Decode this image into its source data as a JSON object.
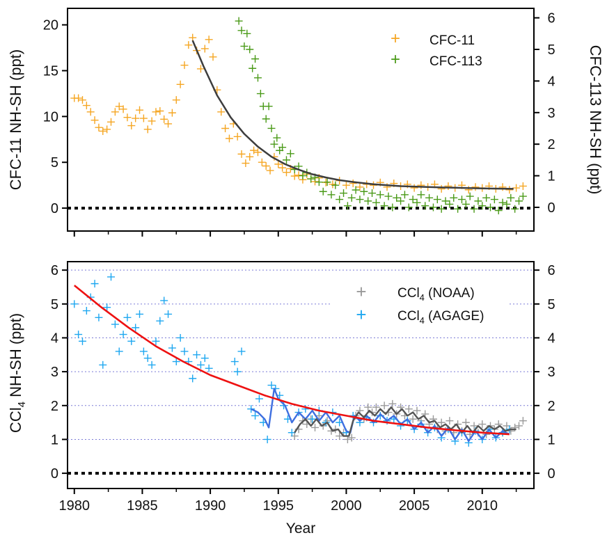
{
  "chart_data": [
    {
      "type": "scatter",
      "panel": "top",
      "x_range": [
        1979.5,
        2013.8
      ],
      "xticks": [
        1980,
        1985,
        1990,
        1995,
        2000,
        2005,
        2010
      ],
      "left_axis": {
        "label": "CFC-11  NH-SH (ppt)",
        "ylim": [
          -2.5,
          21.8
        ],
        "ticks": [
          "0",
          "5",
          "10",
          "15",
          "20"
        ]
      },
      "right_axis": {
        "label": "CFC-113 NH-SH (ppt)",
        "ylim": [
          -0.75,
          6.3
        ],
        "ticks": [
          "0",
          "1",
          "2",
          "3",
          "4",
          "5",
          "6"
        ]
      },
      "zero_line": true,
      "series": [
        {
          "name": "CFC-11",
          "color": "#f5a623",
          "marker": "+",
          "axis": "left",
          "x": [
            1980.0,
            1980.3,
            1980.6,
            1980.9,
            1981.2,
            1981.5,
            1981.8,
            1982.1,
            1982.4,
            1982.7,
            1983.0,
            1983.3,
            1983.6,
            1983.9,
            1984.2,
            1984.5,
            1984.8,
            1985.1,
            1985.4,
            1985.7,
            1986.0,
            1986.3,
            1986.6,
            1986.9,
            1987.2,
            1987.5,
            1987.8,
            1988.1,
            1988.4,
            1988.7,
            1989.0,
            1989.3,
            1989.6,
            1989.9,
            1990.2,
            1990.5,
            1990.8,
            1991.1,
            1991.4,
            1991.7,
            1992.0,
            1992.3,
            1992.6,
            1992.9,
            1993.2,
            1993.5,
            1993.8,
            1994.1,
            1994.4,
            1994.7,
            1995.0,
            1995.3,
            1995.6,
            1995.9,
            1996.2,
            1996.5,
            1996.8,
            1997.1,
            1997.4,
            1997.7,
            1998.0,
            1998.5,
            1999.0,
            1999.5,
            2000.0,
            2000.5,
            2001.0,
            2001.5,
            2002.0,
            2002.5,
            2003.0,
            2003.5,
            2004.0,
            2004.5,
            2005.0,
            2005.5,
            2006.0,
            2006.5,
            2007.0,
            2007.5,
            2008.0,
            2008.5,
            2009.0,
            2009.5,
            2010.0,
            2010.5,
            2011.0,
            2011.5,
            2012.0,
            2012.5,
            2013.0
          ],
          "y": [
            12.0,
            12.0,
            11.8,
            11.2,
            10.5,
            9.6,
            8.8,
            8.4,
            8.6,
            9.4,
            10.5,
            11.1,
            10.8,
            9.9,
            9.0,
            9.8,
            10.7,
            9.8,
            8.6,
            9.5,
            10.5,
            10.6,
            9.7,
            9.2,
            10.4,
            11.8,
            13.5,
            15.6,
            17.8,
            18.6,
            17.2,
            15.2,
            17.4,
            18.4,
            16.5,
            12.9,
            10.5,
            8.7,
            7.6,
            9.2,
            7.8,
            5.9,
            4.9,
            5.6,
            6.3,
            6.1,
            5.0,
            4.6,
            4.1,
            5.6,
            4.8,
            4.4,
            3.9,
            4.3,
            3.5,
            3.6,
            3.1,
            3.7,
            3.2,
            2.9,
            3.3,
            2.8,
            2.6,
            3.0,
            2.5,
            2.7,
            2.3,
            2.6,
            2.5,
            2.8,
            2.3,
            2.7,
            2.4,
            2.6,
            2.2,
            2.5,
            2.3,
            2.6,
            2.1,
            2.4,
            2.2,
            2.5,
            2.0,
            2.3,
            2.2,
            2.4,
            2.1,
            2.3,
            2.0,
            2.2,
            2.4
          ]
        },
        {
          "name": "CFC-113",
          "color": "#4a9a18",
          "marker": "+",
          "axis": "right",
          "x": [
            1992.1,
            1992.3,
            1992.5,
            1992.7,
            1992.9,
            1993.1,
            1993.3,
            1993.5,
            1993.7,
            1993.9,
            1994.1,
            1994.3,
            1994.5,
            1994.7,
            1994.9,
            1995.1,
            1995.3,
            1995.6,
            1995.9,
            1996.2,
            1996.5,
            1996.8,
            1997.1,
            1997.4,
            1997.7,
            1998.0,
            1998.3,
            1998.6,
            1998.9,
            1999.2,
            1999.5,
            1999.8,
            2000.1,
            2000.4,
            2000.7,
            2001.0,
            2001.3,
            2001.6,
            2001.9,
            2002.2,
            2002.5,
            2002.8,
            2003.1,
            2003.4,
            2003.7,
            2004.0,
            2004.3,
            2004.6,
            2004.9,
            2005.2,
            2005.5,
            2005.8,
            2006.1,
            2006.4,
            2006.7,
            2007.0,
            2007.3,
            2007.6,
            2007.9,
            2008.2,
            2008.5,
            2008.8,
            2009.1,
            2009.4,
            2009.7,
            2010.0,
            2010.3,
            2010.6,
            2010.9,
            2011.2,
            2011.5,
            2011.8,
            2012.1,
            2012.4,
            2012.7,
            2013.0
          ],
          "y": [
            5.9,
            5.6,
            5.1,
            5.5,
            5.0,
            4.4,
            4.7,
            4.1,
            3.6,
            3.2,
            2.8,
            3.2,
            2.5,
            2.0,
            2.2,
            1.8,
            1.9,
            1.5,
            1.7,
            1.2,
            1.3,
            1.0,
            1.1,
            0.9,
            0.95,
            0.8,
            0.5,
            0.8,
            0.4,
            0.7,
            0.25,
            0.45,
            0.05,
            0.3,
            0.55,
            0.25,
            0.5,
            0.2,
            0.45,
            0.15,
            0.4,
            0.05,
            0.35,
            0.0,
            0.3,
            0.2,
            0.4,
            0.0,
            0.25,
            0.15,
            0.4,
            0.05,
            0.3,
            0.0,
            0.25,
            -0.05,
            0.2,
            0.1,
            0.3,
            -0.05,
            0.25,
            0.1,
            0.35,
            -0.05,
            0.2,
            0.05,
            0.3,
            0.0,
            0.25,
            -0.1,
            0.15,
            0.1,
            0.3,
            -0.05,
            0.2,
            0.35
          ]
        },
        {
          "name": "",
          "type": "line",
          "color": "#3d3d3d",
          "axis": "left",
          "x": [
            1988.7,
            1989.5,
            1990.5,
            1991.5,
            1992.5,
            1993.5,
            1994.5,
            1995.5,
            1996.5,
            1997.5,
            1998.5,
            1999.5,
            2000.5,
            2002,
            2004,
            2006,
            2008,
            2010,
            2012.3
          ],
          "y": [
            18.3,
            15.5,
            12.3,
            9.9,
            8.1,
            6.7,
            5.6,
            4.8,
            4.2,
            3.7,
            3.35,
            3.05,
            2.85,
            2.6,
            2.4,
            2.3,
            2.22,
            2.15,
            2.1
          ]
        }
      ]
    },
    {
      "type": "scatter",
      "panel": "bottom",
      "xlabel": "Year",
      "x_range": [
        1979.5,
        2013.8
      ],
      "xticks": [
        "1980",
        "1985",
        "1990",
        "1995",
        "2000",
        "2005",
        "2010"
      ],
      "left_axis": {
        "label": "CCl4  NH-SH (ppt)",
        "ylim": [
          -0.45,
          6.25
        ],
        "ticks": [
          "0",
          "1",
          "2",
          "3",
          "4",
          "5",
          "6"
        ]
      },
      "right_axis": {
        "ticks": [
          "0",
          "1",
          "2",
          "3",
          "4",
          "5",
          "6"
        ]
      },
      "grid": "dotted horizontal at 1–6",
      "zero_line": true,
      "series": [
        {
          "name": "CCl4 (NOAA)",
          "label_main": "CCl",
          "label_sub": "4",
          "label_tail": " (NOAA)",
          "color": "#999999",
          "marker": "+",
          "x": [
            1996.2,
            1996.5,
            1996.8,
            1997.1,
            1997.4,
            1997.7,
            1998.0,
            1998.3,
            1998.6,
            1998.9,
            1999.2,
            1999.5,
            1999.8,
            2000.1,
            2000.4,
            2000.7,
            2001.0,
            2001.3,
            2001.6,
            2001.9,
            2002.2,
            2002.5,
            2002.8,
            2003.1,
            2003.4,
            2003.7,
            2004.0,
            2004.3,
            2004.6,
            2004.9,
            2005.2,
            2005.5,
            2005.8,
            2006.1,
            2006.4,
            2006.7,
            2007.0,
            2007.3,
            2007.6,
            2007.9,
            2008.2,
            2008.5,
            2008.8,
            2009.1,
            2009.4,
            2009.7,
            2010.0,
            2010.3,
            2010.6,
            2010.9,
            2011.2,
            2011.5,
            2011.8,
            2012.1,
            2012.4,
            2012.7,
            2013.0
          ],
          "y": [
            1.1,
            1.3,
            1.55,
            1.45,
            1.6,
            1.35,
            1.7,
            1.4,
            1.55,
            1.25,
            1.3,
            1.1,
            1.2,
            1.0,
            1.05,
            1.7,
            1.85,
            1.6,
            1.95,
            1.8,
            1.95,
            1.7,
            2.0,
            1.8,
            2.05,
            1.75,
            1.95,
            1.7,
            1.9,
            1.6,
            1.85,
            1.55,
            1.75,
            1.45,
            1.6,
            1.3,
            1.5,
            1.25,
            1.55,
            1.2,
            1.45,
            1.25,
            1.5,
            1.15,
            1.4,
            1.2,
            1.45,
            1.15,
            1.4,
            1.3,
            1.45,
            1.2,
            1.4,
            1.25,
            1.35,
            1.4,
            1.55
          ]
        },
        {
          "name": "CCl4 (AGAGE)",
          "label_main": "CCl",
          "label_sub": "4",
          "label_tail": " (AGAGE)",
          "color": "#1ea7f0",
          "marker": "+",
          "x": [
            1980.0,
            1980.3,
            1980.6,
            1980.9,
            1981.2,
            1981.5,
            1981.8,
            1982.1,
            1982.4,
            1982.7,
            1983.0,
            1983.3,
            1983.6,
            1983.9,
            1984.2,
            1984.5,
            1984.8,
            1985.1,
            1985.4,
            1985.7,
            1986.0,
            1986.3,
            1986.6,
            1986.9,
            1987.2,
            1987.5,
            1987.8,
            1988.1,
            1988.4,
            1988.7,
            1989.0,
            1989.3,
            1989.6,
            1989.9,
            1991.8,
            1992.0,
            1992.3,
            1993.0,
            1993.3,
            1993.6,
            1993.9,
            1994.2,
            1994.5,
            1994.8,
            1995.1,
            1995.4,
            1995.7,
            1996.0,
            1996.5,
            1997.0,
            1997.5,
            1998.0,
            1998.5,
            1999.0,
            1999.5,
            2000.0,
            2000.5,
            2001.0,
            2001.5,
            2002.0,
            2002.5,
            2003.0,
            2003.5,
            2004.0,
            2004.5,
            2005.0,
            2005.5,
            2006.0,
            2006.5,
            2007.0,
            2007.5,
            2008.0,
            2008.5,
            2009.0,
            2009.5,
            2010.0,
            2010.5,
            2011.0,
            2011.5,
            2012.0
          ],
          "y": [
            5.0,
            4.1,
            3.9,
            4.8,
            5.2,
            5.6,
            4.6,
            3.2,
            4.9,
            5.8,
            4.4,
            3.6,
            4.1,
            4.6,
            3.9,
            4.3,
            4.7,
            3.6,
            3.4,
            3.2,
            3.9,
            4.5,
            5.1,
            4.7,
            3.7,
            3.3,
            4.0,
            3.6,
            3.3,
            2.8,
            3.5,
            3.2,
            3.4,
            3.1,
            3.3,
            3.0,
            3.6,
            1.9,
            1.7,
            2.2,
            1.5,
            1.0,
            2.6,
            2.5,
            2.3,
            2.0,
            1.6,
            1.2,
            1.8,
            1.9,
            1.6,
            1.85,
            1.5,
            1.8,
            1.5,
            1.2,
            1.7,
            1.5,
            1.65,
            1.5,
            1.7,
            1.55,
            1.6,
            1.4,
            1.55,
            1.3,
            1.45,
            1.2,
            1.35,
            1.05,
            1.3,
            0.95,
            1.2,
            0.9,
            1.25,
            1.0,
            1.3,
            1.05,
            1.2,
            1.3
          ]
        },
        {
          "name": "",
          "type": "line",
          "color": "#3e6fe0",
          "x": [
            1993.0,
            1993.5,
            1994.0,
            1994.3,
            1994.7,
            1995.0,
            1995.5,
            1996.0,
            1996.5,
            1997.0,
            1997.5,
            1998.0,
            1998.5,
            1999.0,
            1999.5,
            2000.0,
            2000.3,
            2000.6,
            2001.0,
            2001.5,
            2002.0,
            2002.5,
            2003.0,
            2003.5,
            2004.0,
            2004.5,
            2005.0,
            2005.5,
            2006.0,
            2006.5,
            2007.0,
            2007.5,
            2008.0,
            2008.5,
            2009.0,
            2009.5,
            2010.0,
            2010.5,
            2011.0,
            2011.5,
            2012.0
          ],
          "y": [
            1.9,
            1.8,
            1.6,
            1.35,
            2.5,
            2.2,
            2.0,
            1.5,
            1.8,
            1.6,
            1.85,
            1.55,
            1.8,
            1.5,
            1.7,
            1.25,
            1.2,
            1.7,
            1.55,
            1.7,
            1.5,
            1.75,
            1.55,
            1.7,
            1.45,
            1.6,
            1.3,
            1.5,
            1.2,
            1.4,
            1.1,
            1.35,
            1.0,
            1.3,
            0.95,
            1.25,
            1.0,
            1.3,
            1.05,
            1.25,
            1.15
          ]
        },
        {
          "name": "",
          "type": "line",
          "color": "#555555",
          "x": [
            1996.2,
            1996.6,
            1997.0,
            1997.4,
            1997.8,
            1998.2,
            1998.6,
            1999.0,
            1999.4,
            1999.8,
            2000.2,
            2000.5,
            2000.9,
            2001.3,
            2001.7,
            2002.1,
            2002.5,
            2002.9,
            2003.3,
            2003.7,
            2004.1,
            2004.5,
            2004.9,
            2005.3,
            2005.7,
            2006.1,
            2006.5,
            2006.9,
            2007.3,
            2007.7,
            2008.1,
            2008.5,
            2008.9,
            2009.3,
            2009.7,
            2010.1,
            2010.5,
            2010.9,
            2011.3,
            2011.7,
            2012.1,
            2012.5
          ],
          "y": [
            1.2,
            1.45,
            1.6,
            1.4,
            1.6,
            1.4,
            1.5,
            1.25,
            1.3,
            1.1,
            1.1,
            1.55,
            1.8,
            1.65,
            1.85,
            1.7,
            1.9,
            1.75,
            1.95,
            1.75,
            1.9,
            1.7,
            1.8,
            1.6,
            1.7,
            1.5,
            1.55,
            1.35,
            1.45,
            1.3,
            1.45,
            1.2,
            1.4,
            1.2,
            1.4,
            1.25,
            1.4,
            1.3,
            1.4,
            1.25,
            1.3,
            1.3
          ]
        },
        {
          "name": "",
          "type": "line",
          "color": "#ee1111",
          "x": [
            1980,
            1982,
            1984,
            1986,
            1988,
            1990,
            1992,
            1994,
            1996,
            1998,
            2000,
            2002,
            2004,
            2006,
            2008,
            2010,
            2012
          ],
          "y": [
            5.55,
            4.9,
            4.3,
            3.75,
            3.3,
            2.9,
            2.6,
            2.3,
            2.05,
            1.85,
            1.7,
            1.55,
            1.45,
            1.35,
            1.27,
            1.2,
            1.15
          ]
        }
      ]
    }
  ]
}
